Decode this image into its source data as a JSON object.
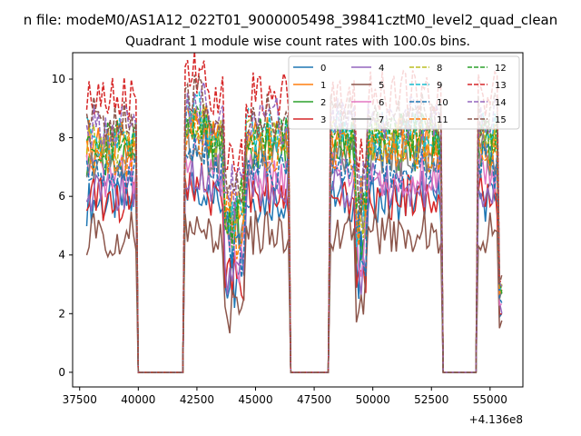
{
  "chart_data": {
    "type": "line",
    "suptitle": "n file: modeM0/AS1A12_022T01_9000005498_39841cztM0_level2_quad_clean",
    "title": "Quadrant 1 module wise count rates with 100.0s bins.",
    "xlabel": "",
    "ylabel": "",
    "x_offset_label": "+4.136e8",
    "xlim": [
      37200,
      56400
    ],
    "ylim": [
      -0.5,
      10.9
    ],
    "x_ticks": [
      37500,
      40000,
      42500,
      45000,
      47500,
      50000,
      52500,
      55000
    ],
    "x_tick_labels": [
      "37500",
      "40000",
      "42500",
      "45000",
      "47500",
      "50000",
      "52500",
      "55000"
    ],
    "y_ticks": [
      0,
      2,
      4,
      6,
      8,
      10
    ],
    "y_tick_labels": [
      "0",
      "2",
      "4",
      "6",
      "8",
      "10"
    ],
    "grid": false,
    "legend_position": "upper-right",
    "legend_columns": 4,
    "bin_seconds": 100,
    "segments": [
      {
        "start": 37800,
        "end": 39800
      },
      {
        "start": 42100,
        "end": 46300
      },
      {
        "start": 48300,
        "end": 52800
      },
      {
        "start": 54600,
        "end": 55500
      }
    ],
    "gaps": [
      [
        40000,
        41900
      ],
      [
        46500,
        48100
      ],
      [
        53000,
        54400
      ]
    ],
    "series": [
      {
        "name": "0",
        "color": "#1f77b4",
        "dashed": false,
        "level": 5.9
      },
      {
        "name": "1",
        "color": "#ff7f0e",
        "dashed": false,
        "level": 8.0
      },
      {
        "name": "2",
        "color": "#2ca02c",
        "dashed": false,
        "level": 7.6
      },
      {
        "name": "3",
        "color": "#d62728",
        "dashed": false,
        "level": 6.0
      },
      {
        "name": "4",
        "color": "#9467bd",
        "dashed": false,
        "level": 6.4
      },
      {
        "name": "5",
        "color": "#8c564b",
        "dashed": false,
        "level": 4.8
      },
      {
        "name": "6",
        "color": "#e377c2",
        "dashed": false,
        "level": 6.8
      },
      {
        "name": "7",
        "color": "#7f7f7f",
        "dashed": false,
        "level": 7.4
      },
      {
        "name": "8",
        "color": "#bcbd22",
        "dashed": true,
        "level": 7.9
      },
      {
        "name": "9",
        "color": "#17becf",
        "dashed": true,
        "level": 8.2
      },
      {
        "name": "10",
        "color": "#1f77b4",
        "dashed": true,
        "level": 7.0
      },
      {
        "name": "11",
        "color": "#ff7f0e",
        "dashed": true,
        "level": 7.6
      },
      {
        "name": "12",
        "color": "#2ca02c",
        "dashed": true,
        "level": 8.1
      },
      {
        "name": "13",
        "color": "#d62728",
        "dashed": true,
        "level": 9.5
      },
      {
        "name": "14",
        "color": "#9467bd",
        "dashed": true,
        "level": 8.6
      },
      {
        "name": "15",
        "color": "#8c564b",
        "dashed": true,
        "level": 8.8
      }
    ]
  }
}
